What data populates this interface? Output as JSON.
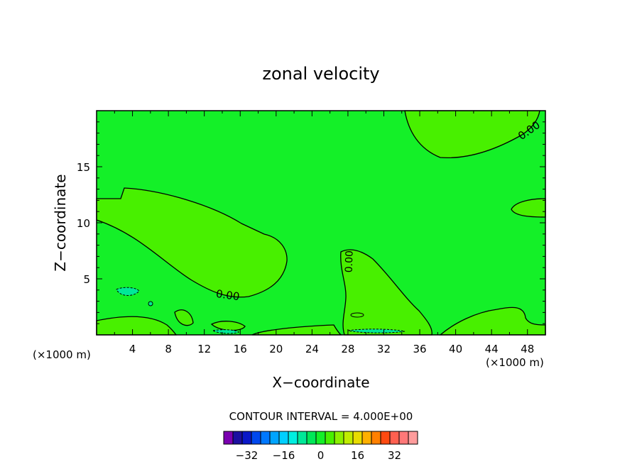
{
  "chart_data": {
    "type": "contour",
    "title": "zonal velocity",
    "xlabel": "X−coordinate",
    "ylabel": "Z−coordinate",
    "x_unit_left": "(×1000 m)",
    "x_unit_right": "(×1000 m)",
    "xlim": [
      0,
      50
    ],
    "ylim": [
      0,
      20
    ],
    "x_ticks": [
      4,
      8,
      12,
      16,
      20,
      24,
      28,
      32,
      36,
      40,
      44,
      48
    ],
    "y_ticks": [
      5,
      10,
      15
    ],
    "contour_labels": [
      "0.00",
      "0.00",
      "0.00"
    ],
    "contour_interval_text": "CONTOUR INTERVAL = 4.000E+00",
    "colorbar": {
      "colors": [
        "#7a00b0",
        "#1c0fa0",
        "#0a18c8",
        "#0048ee",
        "#0078ff",
        "#00a4ff",
        "#00cfff",
        "#00eee0",
        "#00e898",
        "#00e858",
        "#14f028",
        "#48f000",
        "#8cf000",
        "#c0ec00",
        "#e8dc00",
        "#ffb000",
        "#ff8000",
        "#ff4a10",
        "#ff6050",
        "#ff7878",
        "#ff9c9c"
      ],
      "tick_labels": [
        "−32",
        "−16",
        "0",
        "16",
        "32"
      ],
      "tick_values": [
        -32,
        -16,
        0,
        16,
        32
      ]
    }
  }
}
